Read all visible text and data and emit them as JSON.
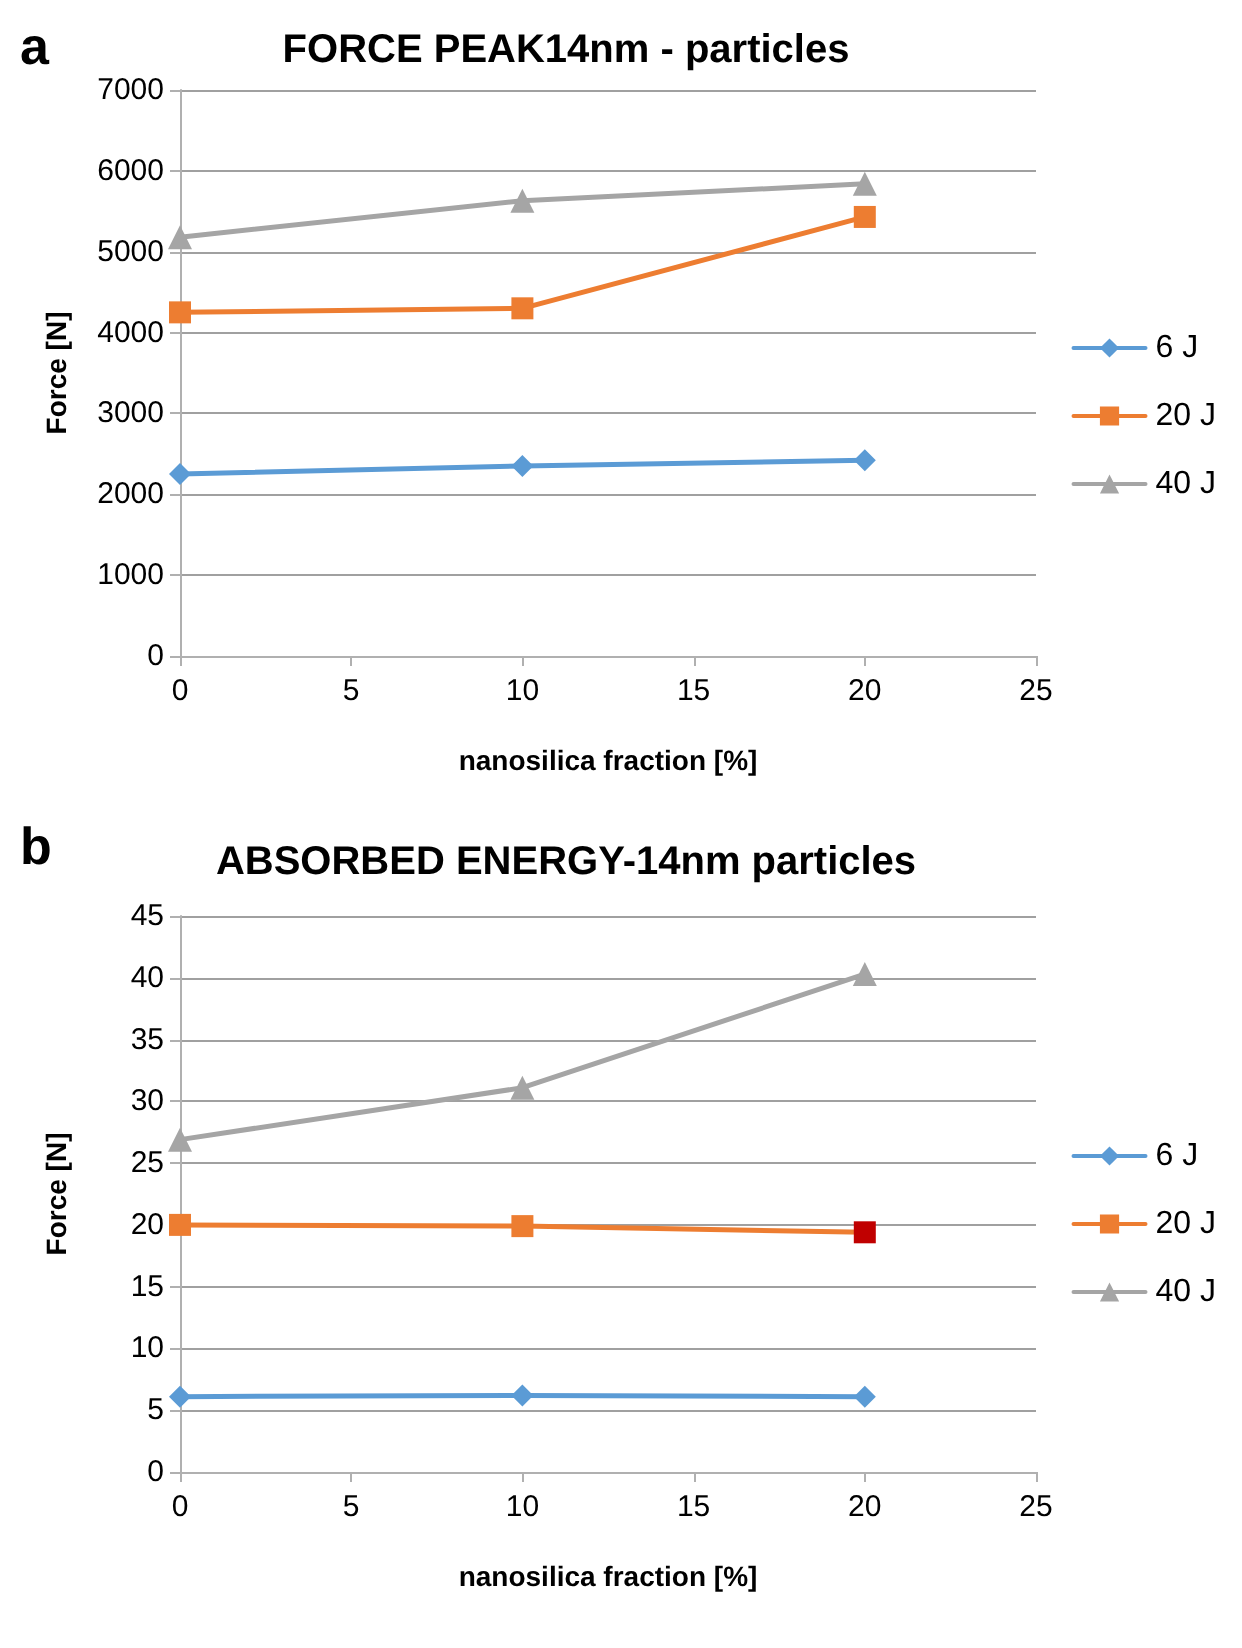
{
  "chart_data": [
    {
      "type": "line",
      "title": "FORCE PEAK14nm - particles",
      "xlabel": "nanosilica fraction [%]",
      "ylabel": "Force [N]",
      "annotations": [
        "a"
      ],
      "x": [
        0,
        10,
        20
      ],
      "xlim": [
        0,
        25
      ],
      "xticks": [
        0,
        5,
        10,
        15,
        20,
        25
      ],
      "ylim": [
        0,
        7000
      ],
      "yticks": [
        0,
        1000,
        2000,
        3000,
        4000,
        5000,
        6000,
        7000
      ],
      "grid": "y",
      "legend": "right",
      "series": [
        {
          "name": "6 J",
          "color": "#5b9bd5",
          "marker": "diamond",
          "values": [
            2250,
            2350,
            2420
          ]
        },
        {
          "name": "20 J",
          "color": "#ed7d31",
          "marker": "square",
          "values": [
            4250,
            4300,
            5430
          ]
        },
        {
          "name": "40 J",
          "color": "#a5a5a5",
          "marker": "triangle",
          "values": [
            5180,
            5630,
            5840
          ]
        }
      ]
    },
    {
      "type": "line",
      "title": "ABSORBED ENERGY-14nm particles",
      "xlabel": "nanosilica fraction [%]",
      "ylabel": "Force [N]",
      "annotations": [
        "b"
      ],
      "x": [
        0,
        10,
        20
      ],
      "xlim": [
        0,
        25
      ],
      "xticks": [
        0,
        5,
        10,
        15,
        20,
        25
      ],
      "ylim": [
        0,
        45
      ],
      "yticks": [
        0,
        5,
        10,
        15,
        20,
        25,
        30,
        35,
        40,
        45
      ],
      "grid": "y",
      "legend": "right",
      "series": [
        {
          "name": "6 J",
          "color": "#5b9bd5",
          "marker": "diamond",
          "values": [
            6.1,
            6.2,
            6.1
          ]
        },
        {
          "name": "20 J",
          "color": "#ed7d31",
          "marker": "square",
          "colors": [
            "#ed7d31",
            "#ed7d31",
            "#c00000"
          ],
          "values": [
            20.0,
            19.9,
            19.4
          ]
        },
        {
          "name": "40 J",
          "color": "#a5a5a5",
          "marker": "triangle",
          "values": [
            26.9,
            31.1,
            40.3
          ]
        }
      ]
    }
  ]
}
